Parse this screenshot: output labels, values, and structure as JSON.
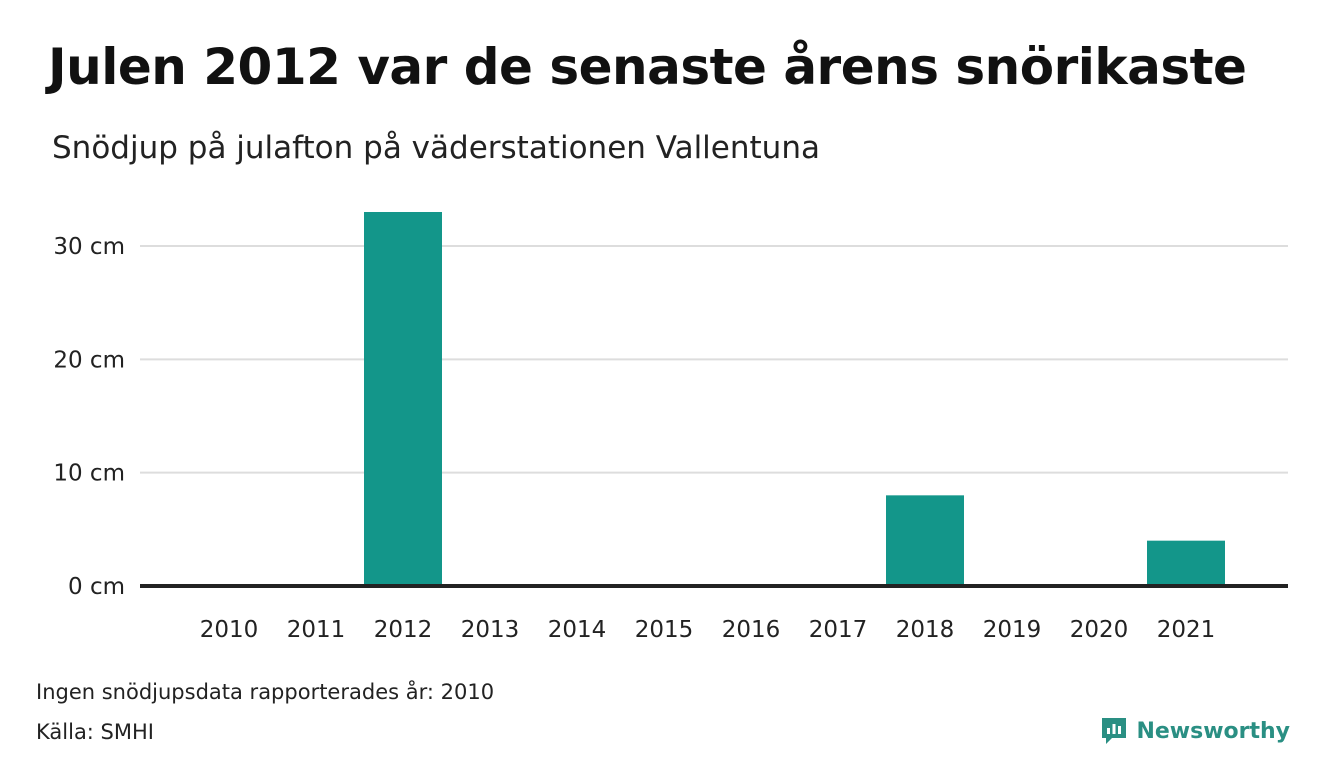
{
  "title": "Julen 2012 var de senaste årens snörikaste",
  "subtitle": "Snödjup på julafton på väderstationen Vallentuna",
  "note": "Ingen snödjupsdata rapporterades år: 2010",
  "source": "Källa: SMHI",
  "brand": {
    "name": "Newsworthy",
    "icon": "newsworthy-logo-icon",
    "color": "#2a8f83"
  },
  "colors": {
    "bar": "#13968a",
    "grid": "#dddddd",
    "baseline": "#222222"
  },
  "chart_data": {
    "type": "bar",
    "title": "Julen 2012 var de senaste årens snörikaste",
    "subtitle": "Snödjup på julafton på väderstationen Vallentuna",
    "categories": [
      "2010",
      "2011",
      "2012",
      "2013",
      "2014",
      "2015",
      "2016",
      "2017",
      "2018",
      "2019",
      "2020",
      "2021"
    ],
    "values": [
      null,
      0,
      33,
      0,
      0,
      0,
      0,
      0,
      8,
      0,
      0,
      4
    ],
    "ylim": [
      0,
      35
    ],
    "yticks": [
      0,
      10,
      20,
      30
    ],
    "ytick_labels": [
      "0 cm",
      "10 cm",
      "20 cm",
      "30 cm"
    ],
    "grid": true,
    "xlabel": "",
    "ylabel": ""
  }
}
